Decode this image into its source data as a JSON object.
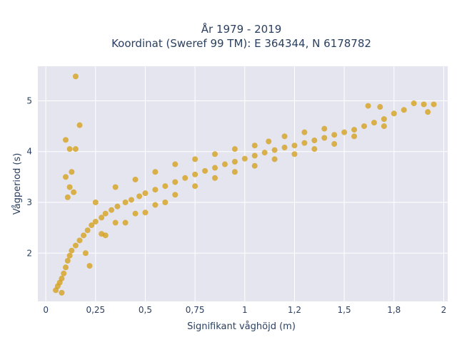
{
  "chart_data": {
    "type": "scatter",
    "title_line1": "År 1979 - 2019",
    "title_line2": "Koordinat (Sweref 99 TM): E 364344, N 6178782",
    "xlabel": "Signifikant våghöjd (m)",
    "ylabel": "Vågperiod (s)",
    "xlim": [
      -0.04,
      2.02
    ],
    "ylim": [
      1.05,
      5.68
    ],
    "x_ticks": [
      0,
      0.25,
      0.5,
      0.75,
      1,
      1.25,
      1.5,
      1.75,
      2
    ],
    "x_tick_labels": [
      "0",
      "0,25",
      "0,5",
      "0,75",
      "1",
      "1,2",
      "1,5",
      "1,8",
      "2"
    ],
    "y_ticks": [
      2,
      3,
      4,
      5
    ],
    "y_tick_labels": [
      "2",
      "3",
      "4",
      "5"
    ],
    "grid": true,
    "colors": {
      "marker": "#d4a11e",
      "plot_bg": "#e5e5f0",
      "grid": "#ffffff"
    },
    "series": [
      {
        "points": [
          [
            0.05,
            1.27
          ],
          [
            0.06,
            1.35
          ],
          [
            0.07,
            1.42
          ],
          [
            0.08,
            1.5
          ],
          [
            0.09,
            1.6
          ],
          [
            0.1,
            1.72
          ],
          [
            0.11,
            1.85
          ],
          [
            0.12,
            1.95
          ],
          [
            0.13,
            2.05
          ],
          [
            0.15,
            2.15
          ],
          [
            0.17,
            2.25
          ],
          [
            0.19,
            2.35
          ],
          [
            0.21,
            2.45
          ],
          [
            0.23,
            2.55
          ],
          [
            0.25,
            2.62
          ],
          [
            0.28,
            2.7
          ],
          [
            0.3,
            2.78
          ],
          [
            0.33,
            2.85
          ],
          [
            0.36,
            2.92
          ],
          [
            0.4,
            3.0
          ],
          [
            0.43,
            3.05
          ],
          [
            0.47,
            3.12
          ],
          [
            0.5,
            3.18
          ],
          [
            0.55,
            3.25
          ],
          [
            0.6,
            3.32
          ],
          [
            0.65,
            3.4
          ],
          [
            0.7,
            3.48
          ],
          [
            0.75,
            3.55
          ],
          [
            0.8,
            3.62
          ],
          [
            0.85,
            3.68
          ],
          [
            0.9,
            3.75
          ],
          [
            0.95,
            3.8
          ],
          [
            1.0,
            3.86
          ],
          [
            1.05,
            3.92
          ],
          [
            1.1,
            3.98
          ],
          [
            1.15,
            4.03
          ],
          [
            1.2,
            4.08
          ],
          [
            1.25,
            4.12
          ],
          [
            1.3,
            4.17
          ],
          [
            1.35,
            4.22
          ],
          [
            1.4,
            4.27
          ],
          [
            1.45,
            4.33
          ],
          [
            1.5,
            4.38
          ],
          [
            1.55,
            4.43
          ],
          [
            1.6,
            4.5
          ],
          [
            1.65,
            4.57
          ],
          [
            1.7,
            4.64
          ],
          [
            1.8,
            4.82
          ],
          [
            1.9,
            4.93
          ],
          [
            1.95,
            4.93
          ],
          [
            0.15,
            5.48
          ],
          [
            0.17,
            4.52
          ],
          [
            0.1,
            4.23
          ],
          [
            0.12,
            4.05
          ],
          [
            0.15,
            4.05
          ],
          [
            0.1,
            3.5
          ],
          [
            0.12,
            3.3
          ],
          [
            0.13,
            3.6
          ],
          [
            0.11,
            3.1
          ],
          [
            0.14,
            3.2
          ],
          [
            0.08,
            1.22
          ],
          [
            0.2,
            2.0
          ],
          [
            0.22,
            1.75
          ],
          [
            0.3,
            2.35
          ],
          [
            0.4,
            2.6
          ],
          [
            0.5,
            2.8
          ],
          [
            0.6,
            3.0
          ],
          [
            0.25,
            3.0
          ],
          [
            0.35,
            3.3
          ],
          [
            0.45,
            3.45
          ],
          [
            0.55,
            3.6
          ],
          [
            0.65,
            3.75
          ],
          [
            0.75,
            3.85
          ],
          [
            0.85,
            3.95
          ],
          [
            0.95,
            4.05
          ],
          [
            1.05,
            4.12
          ],
          [
            1.12,
            4.2
          ],
          [
            1.2,
            4.3
          ],
          [
            1.3,
            4.38
          ],
          [
            1.4,
            4.45
          ],
          [
            1.62,
            4.9
          ],
          [
            1.68,
            4.88
          ],
          [
            1.75,
            4.75
          ],
          [
            1.85,
            4.95
          ],
          [
            1.92,
            4.78
          ],
          [
            1.7,
            4.5
          ],
          [
            1.55,
            4.3
          ],
          [
            1.45,
            4.15
          ],
          [
            1.35,
            4.05
          ],
          [
            1.25,
            3.95
          ],
          [
            1.15,
            3.85
          ],
          [
            1.05,
            3.72
          ],
          [
            0.95,
            3.6
          ],
          [
            0.85,
            3.48
          ],
          [
            0.75,
            3.32
          ],
          [
            0.65,
            3.15
          ],
          [
            0.55,
            2.95
          ],
          [
            0.45,
            2.78
          ],
          [
            0.35,
            2.6
          ],
          [
            0.28,
            2.38
          ]
        ]
      }
    ]
  }
}
